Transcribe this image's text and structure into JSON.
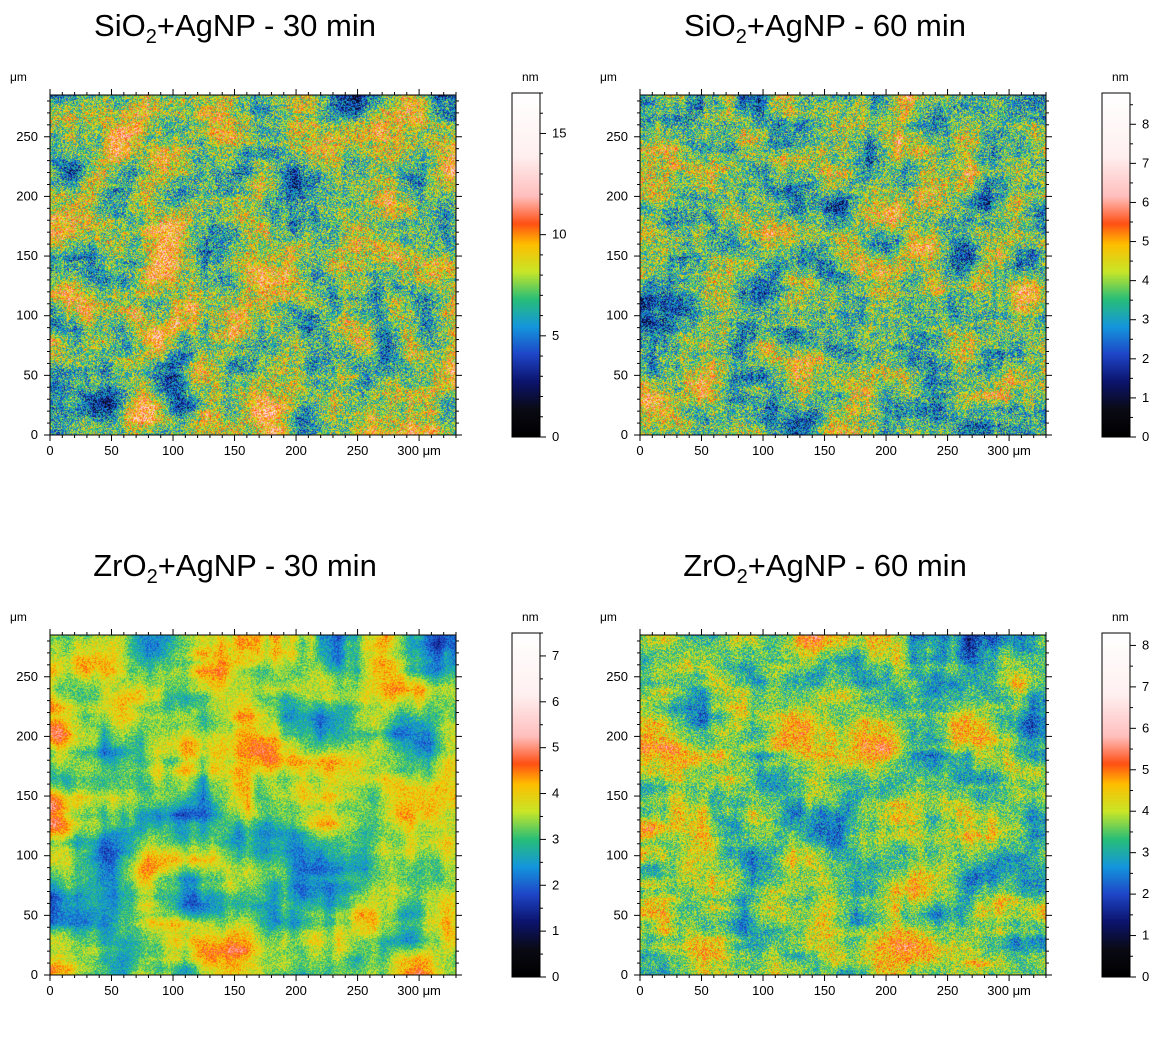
{
  "chart_data": [
    {
      "type": "heatmap",
      "title_pre": "SiO",
      "title_sub": "2",
      "title_post": "+AgNP - 30 min",
      "x_unit": "μm",
      "y_unit": "μm",
      "z_unit": "nm",
      "xlim": [
        0,
        330
      ],
      "ylim": [
        0,
        285
      ],
      "x_ticks": [
        0,
        50,
        100,
        150,
        200,
        250,
        300
      ],
      "x_tick_labels": [
        "0",
        "50",
        "100",
        "150",
        "200",
        "250",
        "300 μm"
      ],
      "y_ticks": [
        0,
        50,
        100,
        150,
        200,
        250
      ],
      "y_tick_labels": [
        "0",
        "50",
        "100",
        "150",
        "200",
        "250"
      ],
      "colorbar": {
        "min": 0,
        "max": 17,
        "ticks": [
          0,
          5,
          10,
          15
        ],
        "tick_labels": [
          "0",
          "5",
          "10",
          "15"
        ]
      }
    },
    {
      "type": "heatmap",
      "title_pre": "SiO",
      "title_sub": "2",
      "title_post": "+AgNP - 60 min",
      "x_unit": "μm",
      "y_unit": "μm",
      "z_unit": "nm",
      "xlim": [
        0,
        330
      ],
      "ylim": [
        0,
        285
      ],
      "x_ticks": [
        0,
        50,
        100,
        150,
        200,
        250,
        300
      ],
      "x_tick_labels": [
        "0",
        "50",
        "100",
        "150",
        "200",
        "250",
        "300 μm"
      ],
      "y_ticks": [
        0,
        50,
        100,
        150,
        200,
        250
      ],
      "y_tick_labels": [
        "0",
        "50",
        "100",
        "150",
        "200",
        "250"
      ],
      "colorbar": {
        "min": 0,
        "max": 8.8,
        "ticks": [
          0,
          1,
          2,
          3,
          4,
          5,
          6,
          7,
          8
        ],
        "tick_labels": [
          "0",
          "1",
          "2",
          "3",
          "4",
          "5",
          "6",
          "7",
          "8"
        ]
      }
    },
    {
      "type": "heatmap",
      "title_pre": "ZrO",
      "title_sub": "2",
      "title_post": "+AgNP - 30 min",
      "x_unit": "μm",
      "y_unit": "μm",
      "z_unit": "nm",
      "xlim": [
        0,
        330
      ],
      "ylim": [
        0,
        285
      ],
      "x_ticks": [
        0,
        50,
        100,
        150,
        200,
        250,
        300
      ],
      "x_tick_labels": [
        "0",
        "50",
        "100",
        "150",
        "200",
        "250",
        "300 μm"
      ],
      "y_ticks": [
        0,
        50,
        100,
        150,
        200,
        250
      ],
      "y_tick_labels": [
        "0",
        "50",
        "100",
        "150",
        "200",
        "250"
      ],
      "colorbar": {
        "min": 0,
        "max": 7.5,
        "ticks": [
          0,
          1,
          2,
          3,
          4,
          5,
          6,
          7
        ],
        "tick_labels": [
          "0",
          "1",
          "2",
          "3",
          "4",
          "5",
          "6",
          "7"
        ]
      }
    },
    {
      "type": "heatmap",
      "title_pre": "ZrO",
      "title_sub": "2",
      "title_post": "+AgNP - 60 min",
      "x_unit": "μm",
      "y_unit": "μm",
      "z_unit": "nm",
      "xlim": [
        0,
        330
      ],
      "ylim": [
        0,
        285
      ],
      "x_ticks": [
        0,
        50,
        100,
        150,
        200,
        250,
        300
      ],
      "x_tick_labels": [
        "0",
        "50",
        "100",
        "150",
        "200",
        "250",
        "300 μm"
      ],
      "y_ticks": [
        0,
        50,
        100,
        150,
        200,
        250
      ],
      "y_tick_labels": [
        "0",
        "50",
        "100",
        "150",
        "200",
        "250"
      ],
      "colorbar": {
        "min": 0,
        "max": 8.3,
        "ticks": [
          0,
          1,
          2,
          3,
          4,
          5,
          6,
          7,
          8
        ],
        "tick_labels": [
          "0",
          "1",
          "2",
          "3",
          "4",
          "5",
          "6",
          "7",
          "8"
        ]
      }
    }
  ]
}
